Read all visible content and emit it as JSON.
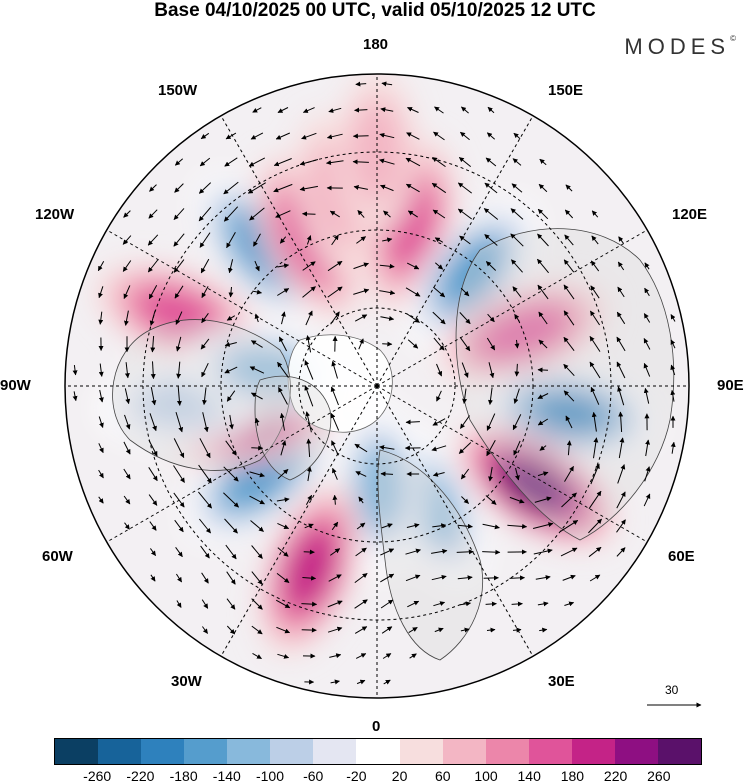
{
  "header": {
    "title": "Base 04/10/2025 00 UTC, valid 05/10/2025 12 UTC",
    "brand": "MODES",
    "brand_mark": "©"
  },
  "map": {
    "projection": "north-polar-stereographic",
    "longitude_labels": {
      "top": "180",
      "top_left": "150W",
      "top_right": "150E",
      "upper_left": "120W",
      "upper_right": "120E",
      "left": "90W",
      "right": "90E",
      "lower_left": "60W",
      "lower_right": "60E",
      "bottom_left": "30W",
      "bottom_right": "30E",
      "bottom": "0"
    },
    "anomaly_centers": [
      {
        "lon": 168,
        "lat": 48,
        "value": 140
      },
      {
        "lon": 140,
        "lat": 52,
        "value": -160
      },
      {
        "lon": 110,
        "lat": 50,
        "value": 160
      },
      {
        "lon": 82,
        "lat": 40,
        "value": -200
      },
      {
        "lon": 58,
        "lat": 42,
        "value": 260
      },
      {
        "lon": 25,
        "lat": 56,
        "value": -120
      },
      {
        "lon": 2,
        "lat": 64,
        "value": -120
      },
      {
        "lon": -20,
        "lat": 40,
        "value": 180
      },
      {
        "lon": -52,
        "lat": 52,
        "value": -180
      },
      {
        "lon": -75,
        "lat": 58,
        "value": 200
      },
      {
        "lon": -85,
        "lat": 40,
        "value": -100
      },
      {
        "lon": -110,
        "lat": 36,
        "value": 140
      },
      {
        "lon": -98,
        "lat": 62,
        "value": -120
      },
      {
        "lon": -140,
        "lat": 44,
        "value": -180
      },
      {
        "lon": -155,
        "lat": 48,
        "value": 140
      },
      {
        "lon": -168,
        "lat": 40,
        "value": 60
      },
      {
        "lon": 180,
        "lat": 30,
        "value": 60
      }
    ]
  },
  "vector_legend": {
    "value": "30"
  },
  "colorbar": {
    "tick_labels": [
      "-260",
      "-220",
      "-180",
      "-140",
      "-100",
      "-60",
      "-20",
      "20",
      "60",
      "100",
      "140",
      "180",
      "220",
      "260"
    ],
    "colors": [
      "#0b3f63",
      "#17639a",
      "#2e81bd",
      "#559dcd",
      "#88b9dc",
      "#bccfe7",
      "#e4e6f2",
      "#ffffff",
      "#f7dede",
      "#f3b6c4",
      "#ec86aa",
      "#e0549a",
      "#c42387",
      "#8e0f82",
      "#5a116a"
    ]
  }
}
